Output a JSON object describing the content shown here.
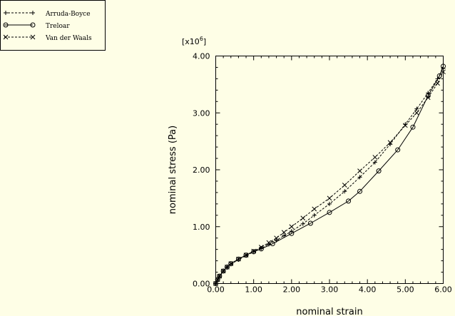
{
  "chart_data": {
    "type": "line",
    "title": "",
    "xlabel": "nominal strain",
    "ylabel": "nominal stress (Pa)",
    "y_multiplier": "[x10",
    "y_multiplier_exp": "6",
    "y_multiplier_close": "]",
    "xlim": [
      0,
      6
    ],
    "ylim": [
      0,
      4
    ],
    "y_scale_note": "values in 1e6 Pa",
    "x_ticks": [
      0,
      1,
      2,
      3,
      4,
      5,
      6
    ],
    "x_tick_labels": [
      "0.00",
      "1.00",
      "2.00",
      "3.00",
      "4.00",
      "5.00",
      "6.00"
    ],
    "y_ticks": [
      0,
      1,
      2,
      3,
      4
    ],
    "y_tick_labels": [
      "0.00",
      "1.00",
      "2.00",
      "3.00",
      "4.00"
    ],
    "grid": false,
    "legend_position": "top-left",
    "series": [
      {
        "name": "Arruda-Boyce",
        "marker": "plus",
        "dash": "dashed",
        "x": [
          0,
          0.05,
          0.1,
          0.2,
          0.3,
          0.4,
          0.6,
          0.8,
          1.0,
          1.2,
          1.4,
          1.6,
          1.8,
          2.0,
          2.3,
          2.6,
          3.0,
          3.4,
          3.8,
          4.2,
          4.6,
          5.0,
          5.3,
          5.6,
          5.85,
          6.0
        ],
        "y": [
          0,
          0.07,
          0.13,
          0.22,
          0.29,
          0.34,
          0.42,
          0.49,
          0.56,
          0.62,
          0.69,
          0.76,
          0.84,
          0.92,
          1.05,
          1.2,
          1.4,
          1.62,
          1.87,
          2.13,
          2.45,
          2.8,
          3.07,
          3.35,
          3.6,
          3.78
        ]
      },
      {
        "name": "Treloar",
        "marker": "circle",
        "dash": "solid",
        "x": [
          0,
          0.05,
          0.1,
          0.2,
          0.3,
          0.4,
          0.6,
          0.8,
          1.0,
          1.2,
          1.5,
          2.0,
          2.5,
          3.0,
          3.5,
          3.8,
          4.3,
          4.8,
          5.2,
          5.6,
          5.9,
          6.0
        ],
        "y": [
          0,
          0.07,
          0.13,
          0.22,
          0.29,
          0.35,
          0.43,
          0.5,
          0.56,
          0.61,
          0.7,
          0.88,
          1.06,
          1.25,
          1.45,
          1.62,
          1.98,
          2.35,
          2.75,
          3.3,
          3.65,
          3.82
        ]
      },
      {
        "name": "Van der Waals",
        "marker": "cross",
        "dash": "dashed",
        "x": [
          0,
          0.05,
          0.1,
          0.2,
          0.3,
          0.4,
          0.6,
          0.8,
          1.0,
          1.2,
          1.4,
          1.6,
          1.8,
          2.0,
          2.3,
          2.6,
          3.0,
          3.4,
          3.8,
          4.2,
          4.6,
          5.0,
          5.3,
          5.6,
          5.85,
          6.0
        ],
        "y": [
          0,
          0.07,
          0.13,
          0.22,
          0.29,
          0.35,
          0.43,
          0.5,
          0.57,
          0.64,
          0.72,
          0.8,
          0.9,
          1.0,
          1.15,
          1.31,
          1.5,
          1.73,
          1.98,
          2.22,
          2.48,
          2.78,
          3.0,
          3.27,
          3.52,
          3.72
        ]
      }
    ]
  }
}
